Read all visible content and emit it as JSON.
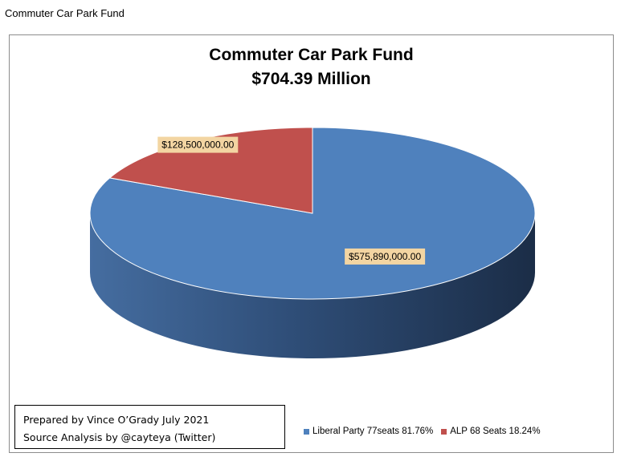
{
  "page_label": "Commuter Car Park Fund",
  "chart_data": {
    "type": "pie",
    "title": "Commuter Car Park Fund",
    "subtitle": "$704.39 Million",
    "slices": [
      {
        "name": "Liberal Party 77seats 81.76%",
        "value": 575890000,
        "label": "$575,890,000.00",
        "color": "#4f81bd"
      },
      {
        "name": "ALP 68 Seats 18.24%",
        "value": 128500000,
        "label": "$128,500,000.00",
        "color": "#c0504d"
      }
    ],
    "legend_position": "bottom-right",
    "style": "3d"
  },
  "credits": {
    "line1": "Prepared by Vince O’Grady July 2021",
    "line2": "Source Analysis by @cayteya (Twitter)"
  }
}
